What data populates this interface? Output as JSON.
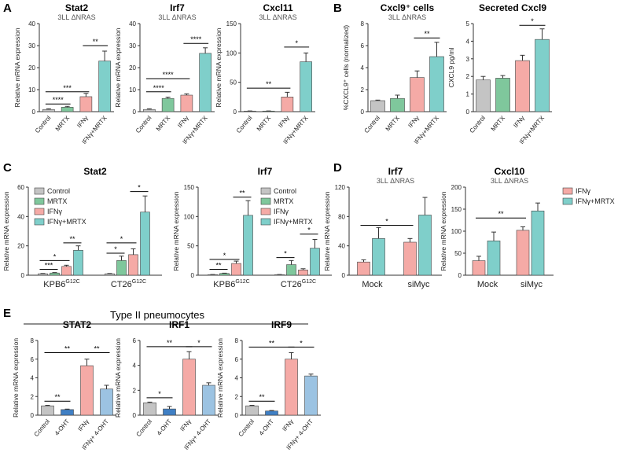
{
  "colors": {
    "control": "#c4c4c4",
    "mrtx": "#7fc79c",
    "ifng": "#f5aaa6",
    "combo": "#7fcfca",
    "ohtDark": "#3f7fc4",
    "comboBlue": "#9cc3e2",
    "axis": "#333333",
    "text": "#222222"
  },
  "panel_labels": {
    "a": "A",
    "b": "B",
    "c": "C",
    "d": "D",
    "e": "E"
  },
  "section_e_title": "Type II pneumocytes",
  "chart_data": [
    {
      "id": "A1",
      "type": "bar",
      "title": "Stat2",
      "subtitle": "3LL ΔNRAS",
      "ylabel": "Relative mRNA expression",
      "categories": [
        "Control",
        "MRTX",
        "IFNγ",
        "IFNγ+MRTX"
      ],
      "values": [
        1,
        2,
        6.8,
        23
      ],
      "errors": [
        0.3,
        0.4,
        1.5,
        4.5
      ],
      "colors": [
        "control",
        "mrtx",
        "ifng",
        "combo"
      ],
      "ylim": [
        0,
        40
      ],
      "yticks": [
        0,
        10,
        20,
        30,
        40
      ],
      "sig": [
        {
          "from": 0,
          "to": 1,
          "label": "****",
          "y": 3.5
        },
        {
          "from": 0,
          "to": 2,
          "label": "***",
          "y": 9
        },
        {
          "from": 2,
          "to": 3,
          "label": "**",
          "y": 30
        }
      ]
    },
    {
      "id": "A2",
      "type": "bar",
      "title": "Irf7",
      "subtitle": "3LL ΔNRAS",
      "ylabel": "Relative mRNA expression",
      "categories": [
        "Control",
        "MRTX",
        "IFNγ",
        "IFNγ+MRTX"
      ],
      "values": [
        1,
        6,
        7.5,
        26.5
      ],
      "errors": [
        0.3,
        0.6,
        0.6,
        2.5
      ],
      "colors": [
        "control",
        "mrtx",
        "ifng",
        "combo"
      ],
      "ylim": [
        0,
        40
      ],
      "yticks": [
        0,
        10,
        20,
        30,
        40
      ],
      "sig": [
        {
          "from": 0,
          "to": 1,
          "label": "****",
          "y": 9
        },
        {
          "from": 0,
          "to": 2,
          "label": "****",
          "y": 15
        },
        {
          "from": 2,
          "to": 3,
          "label": "****",
          "y": 31
        }
      ]
    },
    {
      "id": "A3",
      "type": "bar",
      "title": "Cxcl11",
      "subtitle": "3LL ΔNRAS",
      "ylabel": "Relative mRNA expression",
      "categories": [
        "Control",
        "MRTX",
        "IFNγ",
        "IFNγ+MRTX"
      ],
      "values": [
        1,
        1,
        25,
        85
      ],
      "errors": [
        0.2,
        0.2,
        8,
        15
      ],
      "colors": [
        "control",
        "mrtx",
        "ifng",
        "combo"
      ],
      "ylim": [
        0,
        150
      ],
      "yticks": [
        0,
        50,
        100,
        150
      ],
      "sig": [
        {
          "from": 0,
          "to": 2,
          "label": "**",
          "y": 40
        },
        {
          "from": 2,
          "to": 3,
          "label": "*",
          "y": 110
        }
      ]
    },
    {
      "id": "B1",
      "type": "bar",
      "title": "Cxcl9⁺ cells",
      "subtitle": "3LL ΔNRAS",
      "ylabel": "%CXCL9⁺ cells (normalized)",
      "categories": [
        "Control",
        "MRTX",
        "IFNγ",
        "IFNγ+MRTX"
      ],
      "values": [
        1,
        1.2,
        3.1,
        5
      ],
      "errors": [
        0.05,
        0.3,
        0.6,
        1.3
      ],
      "colors": [
        "control",
        "mrtx",
        "ifng",
        "combo"
      ],
      "ylim": [
        0,
        8
      ],
      "yticks": [
        0,
        2,
        4,
        6,
        8
      ],
      "sig": [
        {
          "from": 2,
          "to": 3,
          "label": "**",
          "y": 6.7
        }
      ]
    },
    {
      "id": "B2",
      "type": "bar",
      "title": "Secreted Cxcl9",
      "subtitle": "",
      "ylabel": "CXCL9 pg/ml",
      "categories": [
        "Control",
        "MRTX",
        "IFNγ",
        "IFNγ+MRTX"
      ],
      "values": [
        1.8,
        1.9,
        2.9,
        4.1
      ],
      "errors": [
        0.2,
        0.15,
        0.3,
        0.6
      ],
      "colors": [
        "control",
        "mrtx",
        "ifng",
        "combo"
      ],
      "ylim": [
        0,
        5
      ],
      "yticks": [
        0,
        1,
        2,
        3,
        4,
        5
      ],
      "sig": [
        {
          "from": 2,
          "to": 3,
          "label": "*",
          "y": 4.9
        }
      ]
    },
    {
      "id": "C1",
      "type": "grouped_bar",
      "title": "Stat2",
      "ylabel": "Relative mRNA expression",
      "groups": [
        {
          "label": "KPB6",
          "sup": "G12C"
        },
        {
          "label": "CT26",
          "sup": "G12C"
        }
      ],
      "series": [
        {
          "name": "Control",
          "color": "control",
          "values": [
            1,
            1
          ],
          "errors": [
            0.2,
            0.2
          ]
        },
        {
          "name": "MRTX",
          "color": "mrtx",
          "values": [
            1.5,
            10
          ],
          "errors": [
            0.3,
            3
          ]
        },
        {
          "name": "IFNγ",
          "color": "ifng",
          "values": [
            6,
            14
          ],
          "errors": [
            0.8,
            4
          ]
        },
        {
          "name": "IFNγ+MRTX",
          "color": "combo",
          "values": [
            17,
            43
          ],
          "errors": [
            3,
            11
          ]
        }
      ],
      "ylim": [
        0,
        60
      ],
      "yticks": [
        0,
        20,
        40,
        60
      ],
      "sig": [
        {
          "g": 0,
          "from": 0,
          "to": 1,
          "label": "***",
          "y": 4
        },
        {
          "g": 0,
          "from": 0,
          "to": 2,
          "label": "*",
          "y": 10
        },
        {
          "g": 0,
          "from": 2,
          "to": 3,
          "label": "**",
          "y": 22
        },
        {
          "g": 1,
          "from": 0,
          "to": 1,
          "label": "*",
          "y": 15
        },
        {
          "g": 1,
          "from": 0,
          "to": 2,
          "label": "*",
          "y": 22
        },
        {
          "g": 1,
          "from": 2,
          "to": 3,
          "label": "*",
          "y": 57
        }
      ]
    },
    {
      "id": "C2",
      "type": "grouped_bar",
      "title": "Irf7",
      "ylabel": "Relative mRNA expression",
      "groups": [
        {
          "label": "KPB6",
          "sup": "G12C"
        },
        {
          "label": "CT26",
          "sup": "G12C"
        }
      ],
      "series": [
        {
          "name": "Control",
          "color": "control",
          "values": [
            1,
            1
          ],
          "errors": [
            0.2,
            0.2
          ]
        },
        {
          "name": "MRTX",
          "color": "mrtx",
          "values": [
            3,
            18
          ],
          "errors": [
            0.5,
            7
          ]
        },
        {
          "name": "IFNγ",
          "color": "ifng",
          "values": [
            20,
            9
          ],
          "errors": [
            4,
            2
          ]
        },
        {
          "name": "IFNγ+MRTX",
          "color": "combo",
          "values": [
            102,
            46
          ],
          "errors": [
            25,
            15
          ]
        }
      ],
      "ylim": [
        0,
        150
      ],
      "yticks": [
        0,
        50,
        100,
        150
      ],
      "sig": [
        {
          "g": 0,
          "from": 0,
          "to": 1,
          "label": "**",
          "y": 10
        },
        {
          "g": 0,
          "from": 0,
          "to": 2,
          "label": "*",
          "y": 27
        },
        {
          "g": 0,
          "from": 2,
          "to": 3,
          "label": "**",
          "y": 133
        },
        {
          "g": 1,
          "from": 0,
          "to": 1,
          "label": "*",
          "y": 30
        },
        {
          "g": 1,
          "from": 2,
          "to": 3,
          "label": "*",
          "y": 70
        }
      ]
    },
    {
      "id": "D1",
      "type": "grouped_bar",
      "title": "Irf7",
      "subtitle": "3LL ΔNRAS",
      "ylabel": "Relative mRNA expression",
      "groups": [
        {
          "label": "Mock",
          "sup": ""
        },
        {
          "label": "siMyc",
          "sup": ""
        }
      ],
      "series": [
        {
          "name": "IFNγ",
          "color": "ifng",
          "values": [
            18,
            45
          ],
          "errors": [
            3,
            5
          ]
        },
        {
          "name": "IFNγ+MRTX",
          "color": "combo",
          "values": [
            50,
            82
          ],
          "errors": [
            15,
            24
          ]
        }
      ],
      "ylim": [
        0,
        120
      ],
      "yticks": [
        0,
        40,
        80,
        120
      ],
      "sig": [
        {
          "gfrom": 0,
          "gto": 1,
          "s": 0,
          "label": "*",
          "y": 68
        }
      ]
    },
    {
      "id": "D2",
      "type": "grouped_bar",
      "title": "Cxcl10",
      "subtitle": "3LL ΔNRAS",
      "ylabel": "Relative mRNA expression",
      "groups": [
        {
          "label": "Mock",
          "sup": ""
        },
        {
          "label": "siMyc",
          "sup": ""
        }
      ],
      "series": [
        {
          "name": "IFNγ",
          "color": "ifng",
          "values": [
            33,
            102
          ],
          "errors": [
            10,
            8
          ]
        },
        {
          "name": "IFNγ+MRTX",
          "color": "combo",
          "values": [
            78,
            146
          ],
          "errors": [
            20,
            18
          ]
        }
      ],
      "ylim": [
        0,
        200
      ],
      "yticks": [
        0,
        50,
        100,
        150,
        200
      ],
      "sig": [
        {
          "gfrom": 0,
          "gto": 1,
          "s": 0,
          "label": "**",
          "y": 130
        }
      ],
      "legend": [
        "IFNγ",
        "IFNγ+MRTX"
      ]
    },
    {
      "id": "E1",
      "type": "bar",
      "title": "STAT2",
      "ylabel": "Relative mRNA expression",
      "categories": [
        "Control",
        "4-OHT",
        "IFNγ",
        "IFNγ+ 4-OHT"
      ],
      "values": [
        1,
        0.6,
        5.3,
        2.8
      ],
      "errors": [
        0.05,
        0.05,
        0.7,
        0.4
      ],
      "colors": [
        "control",
        "ohtDark",
        "ifng",
        "comboBlue"
      ],
      "ylim": [
        0,
        8
      ],
      "yticks": [
        0,
        2,
        4,
        6,
        8
      ],
      "sig": [
        {
          "from": 0,
          "to": 1,
          "label": "**",
          "y": 1.5
        },
        {
          "from": 0,
          "to": 2,
          "label": "**",
          "y": 6.7
        },
        {
          "from": 2,
          "to": 3,
          "label": "**",
          "y": 6.7
        }
      ]
    },
    {
      "id": "E2",
      "type": "bar",
      "title": "IRF1",
      "ylabel": "Relative mRNA expression",
      "categories": [
        "Control",
        "4-OHT",
        "IFNγ",
        "IFNγ+ 4-OHT"
      ],
      "values": [
        1,
        0.5,
        4.5,
        2.4
      ],
      "errors": [
        0.05,
        0.2,
        0.6,
        0.2
      ],
      "colors": [
        "control",
        "ohtDark",
        "ifng",
        "comboBlue"
      ],
      "ylim": [
        0,
        6
      ],
      "yticks": [
        0,
        2,
        4,
        6
      ],
      "sig": [
        {
          "from": 0,
          "to": 1,
          "label": "*",
          "y": 1.4
        },
        {
          "from": 0,
          "to": 2,
          "label": "**",
          "y": 5.5
        },
        {
          "from": 2,
          "to": 3,
          "label": "*",
          "y": 5.5
        }
      ]
    },
    {
      "id": "E3",
      "type": "bar",
      "title": "IRF9",
      "ylabel": "Relative mRNA expression",
      "categories": [
        "Control",
        "4-OHT",
        "IFNγ",
        "IFNγ+ 4-OHT"
      ],
      "values": [
        1,
        0.45,
        6,
        4.2
      ],
      "errors": [
        0.05,
        0.05,
        0.7,
        0.2
      ],
      "colors": [
        "control",
        "ohtDark",
        "ifng",
        "comboBlue"
      ],
      "ylim": [
        0,
        8
      ],
      "yticks": [
        0,
        2,
        4,
        6,
        8
      ],
      "sig": [
        {
          "from": 0,
          "to": 1,
          "label": "**",
          "y": 1.5
        },
        {
          "from": 0,
          "to": 2,
          "label": "**",
          "y": 7.3
        },
        {
          "from": 2,
          "to": 3,
          "label": "*",
          "y": 7.3
        }
      ]
    }
  ]
}
